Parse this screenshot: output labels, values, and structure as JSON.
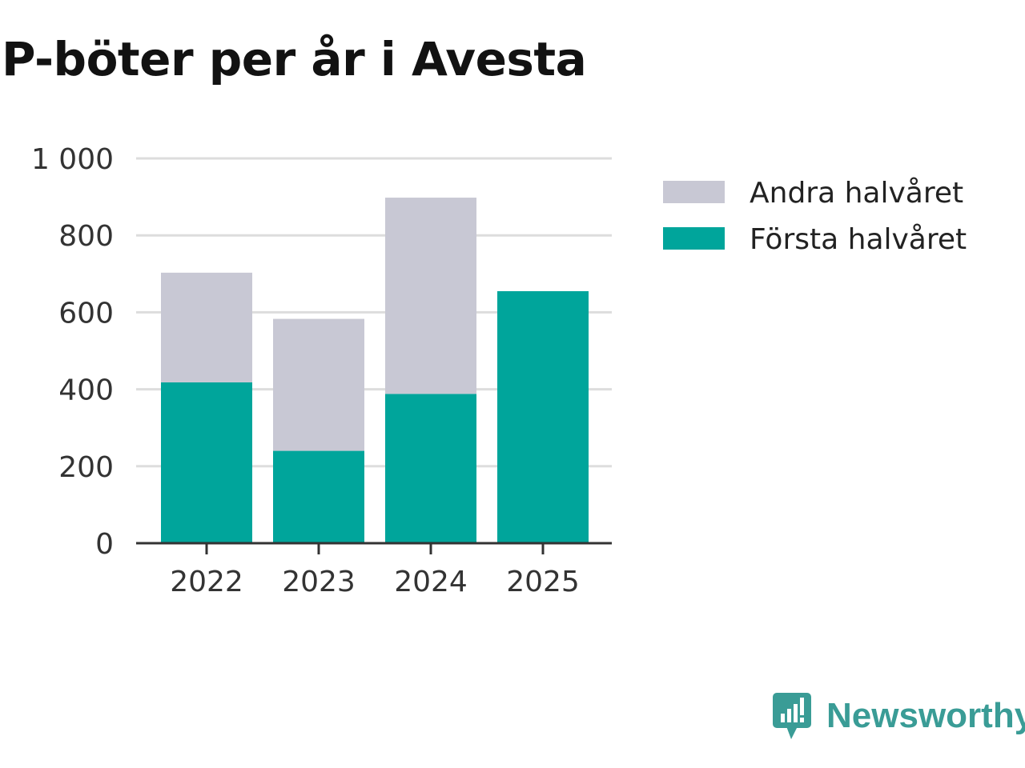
{
  "chart_data": {
    "type": "bar",
    "stacked": true,
    "title": "P-böter per år i Avesta",
    "categories": [
      "2022",
      "2023",
      "2024",
      "2025"
    ],
    "series": [
      {
        "name": "Första halvåret",
        "color": "#00a59b",
        "values": [
          418,
          240,
          388,
          655
        ]
      },
      {
        "name": "Andra halvåret",
        "color": "#c8c8d4",
        "values": [
          285,
          343,
          510,
          0
        ]
      }
    ],
    "legend_order": [
      "Andra halvåret",
      "Första halvåret"
    ],
    "legend_position": "right",
    "y_ticks": [
      0,
      200,
      400,
      600,
      800,
      1000
    ],
    "y_tick_labels": [
      "0",
      "200",
      "400",
      "600",
      "800",
      "1 000"
    ],
    "ylim": [
      0,
      1000
    ],
    "grid": true,
    "xlabel": "",
    "ylabel": ""
  },
  "brand": {
    "name": "Newsworthy",
    "logo_icon": "newsworthy-logo-icon",
    "color": "#3a9c96"
  }
}
